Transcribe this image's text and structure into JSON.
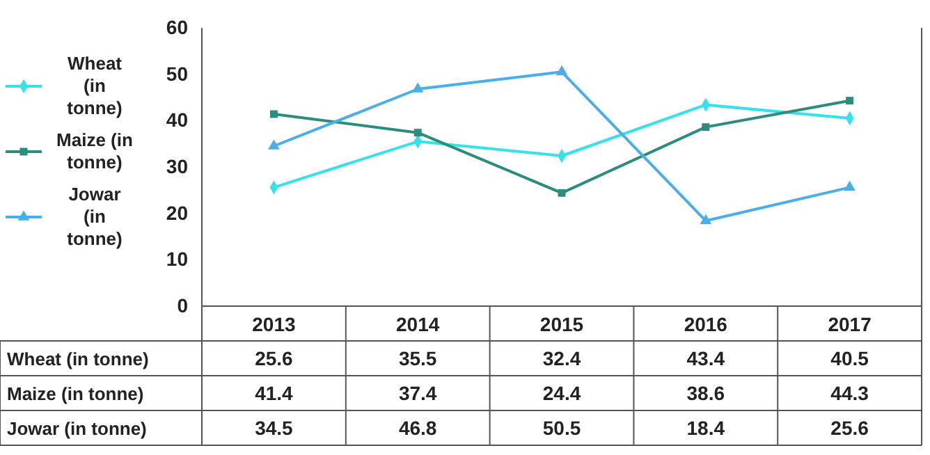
{
  "chart_data": {
    "type": "line",
    "categories": [
      "2013",
      "2014",
      "2015",
      "2016",
      "2017"
    ],
    "series": [
      {
        "name": "Wheat (in tonne)",
        "color": "#36e2ea",
        "marker": "diamond",
        "values": [
          25.6,
          35.5,
          32.4,
          43.4,
          40.5
        ]
      },
      {
        "name": "Maize (in tonne)",
        "color": "#2e8c7c",
        "marker": "square",
        "values": [
          41.4,
          37.4,
          24.4,
          38.6,
          44.3
        ]
      },
      {
        "name": "Jowar (in tonne)",
        "color": "#4aaeea",
        "marker": "triangle",
        "values": [
          34.5,
          46.8,
          50.5,
          18.4,
          25.6
        ]
      }
    ],
    "ylim": [
      0,
      60
    ],
    "yticks": [
      0,
      10,
      20,
      30,
      40,
      50,
      60
    ],
    "legend": "left",
    "data_labels": true
  }
}
